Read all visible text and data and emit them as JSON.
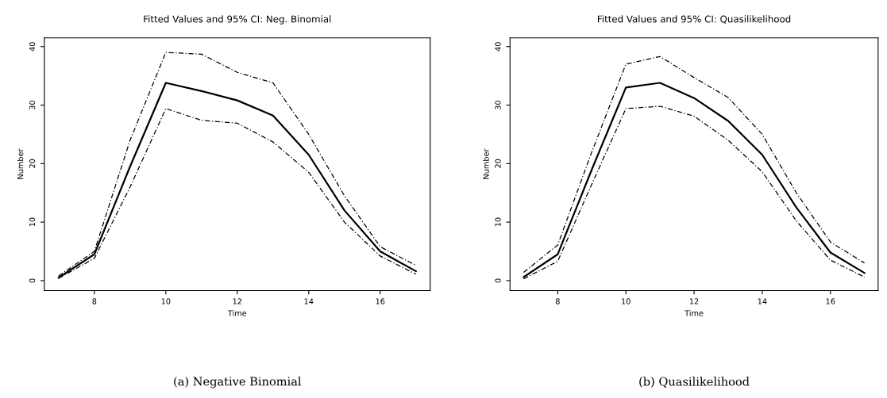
{
  "chart_data": [
    {
      "type": "line",
      "title": "Fitted Values and 95% CI: Neg. Binomial",
      "xlabel": "Time",
      "ylabel": "Number",
      "x": [
        7,
        8,
        9,
        10,
        11,
        12,
        13,
        14,
        15,
        16,
        17
      ],
      "xlim": [
        6.6,
        17.4
      ],
      "ylim": [
        -1.7,
        41.5
      ],
      "xticks": [
        8,
        10,
        12,
        14,
        16
      ],
      "yticks": [
        0,
        10,
        20,
        30,
        40
      ],
      "grid": false,
      "legend": false,
      "annotations": [
        "(a) Negative Binomial"
      ],
      "series": [
        {
          "color": "#000000",
          "line_style": "solid",
          "values": [
            0.5,
            4.5,
            19.5,
            33.8,
            32.4,
            30.8,
            28.2,
            21.5,
            12,
            5,
            1.6
          ]
        },
        {
          "color": "#000000",
          "line_style": "dashed",
          "values": [
            0.8,
            5,
            24,
            39,
            38.7,
            35.6,
            33.8,
            25,
            14.5,
            5.8,
            2.6
          ]
        },
        {
          "color": "#000000",
          "line_style": "dashed",
          "values": [
            0.4,
            3.8,
            16,
            29.4,
            27.4,
            26.9,
            23.7,
            18.5,
            10,
            4.2,
            1.1
          ]
        }
      ]
    },
    {
      "type": "line",
      "title": "Fitted Values and 95% CI: Quasilikelihood",
      "xlabel": "Time",
      "ylabel": "Number",
      "x": [
        7,
        8,
        9,
        10,
        11,
        12,
        13,
        14,
        15,
        16,
        17
      ],
      "xlim": [
        6.6,
        17.4
      ],
      "ylim": [
        -1.7,
        41.5
      ],
      "xticks": [
        8,
        10,
        12,
        14,
        16
      ],
      "yticks": [
        0,
        10,
        20,
        30,
        40
      ],
      "grid": false,
      "legend": false,
      "annotations": [
        "(b) Quasilikelihood"
      ],
      "series": [
        {
          "color": "#000000",
          "line_style": "solid",
          "values": [
            0.6,
            4.5,
            19,
            33,
            33.8,
            31.2,
            27.3,
            21.5,
            12.5,
            4.8,
            1.3
          ]
        },
        {
          "color": "#000000",
          "line_style": "dashed",
          "values": [
            1.4,
            6.1,
            22,
            37,
            38.3,
            34.7,
            31.3,
            25,
            15,
            6.6,
            3
          ]
        },
        {
          "color": "#000000",
          "line_style": "dashed",
          "values": [
            0.3,
            3.3,
            16.5,
            29.4,
            29.8,
            28.1,
            24,
            18.6,
            10.2,
            3.5,
            0.6
          ]
        }
      ]
    }
  ]
}
